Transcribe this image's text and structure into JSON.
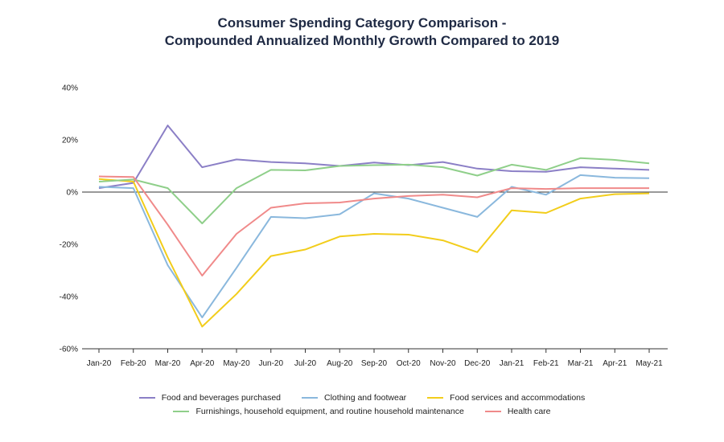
{
  "title_line1": "Consumer Spending Category Comparison -",
  "title_line2": "Compounded Annualized Monthly Growth Compared to 2019",
  "chart_data": {
    "type": "line",
    "title": "Consumer Spending Category Comparison - Compounded Annualized Monthly Growth Compared to 2019",
    "xlabel": "",
    "ylabel": "",
    "ylim": [
      -60,
      40
    ],
    "yticks": [
      "40%",
      "20%",
      "0%",
      "-20%",
      "-40%",
      "-60%"
    ],
    "ytick_values": [
      40,
      20,
      0,
      -20,
      -40,
      -60
    ],
    "categories": [
      "Jan-20",
      "Feb-20",
      "Mar-20",
      "Apr-20",
      "May-20",
      "Jun-20",
      "Jul-20",
      "Aug-20",
      "Sep-20",
      "Oct-20",
      "Nov-20",
      "Dec-20",
      "Jan-21",
      "Feb-21",
      "Mar-21",
      "Apr-21",
      "May-21"
    ],
    "legend_position": "bottom",
    "grid": false,
    "series": [
      {
        "name": "Food and beverages purchased",
        "color": "#8b7fc6",
        "values": [
          1.5,
          3.5,
          25.5,
          9.5,
          12.5,
          11.5,
          11,
          10,
          11.3,
          10.3,
          11.5,
          9,
          8,
          7.8,
          9.5,
          9,
          8.5
        ]
      },
      {
        "name": "Clothing and footwear",
        "color": "#8ab8dd",
        "values": [
          2,
          1.5,
          -28,
          -48,
          -29,
          -9.5,
          -10,
          -8.5,
          -0.5,
          -2.5,
          -6,
          -9.5,
          2,
          -1,
          6.5,
          5.5,
          5.3
        ]
      },
      {
        "name": "Food services and accommodations",
        "color": "#f2cd1b",
        "values": [
          5,
          4,
          -25,
          -51.5,
          -39,
          -24.5,
          -22,
          -17,
          -16,
          -16.3,
          -18.5,
          -23,
          -7,
          -8,
          -2.5,
          -0.8,
          -0.5
        ]
      },
      {
        "name": "Furnishings, household equipment, and routine household maintenance",
        "color": "#8fcf8a",
        "values": [
          4,
          4.8,
          1.5,
          -12,
          1.5,
          8.5,
          8.3,
          10,
          10.3,
          10.5,
          9.5,
          6.3,
          10.5,
          8.5,
          13,
          12.3,
          11
        ]
      },
      {
        "name": "Health care",
        "color": "#f08a8a",
        "values": [
          6,
          5.8,
          -12.5,
          -32,
          -16,
          -6,
          -4.3,
          -4,
          -2.5,
          -1.5,
          -1,
          -2,
          1.5,
          1.2,
          1.5,
          1.5,
          1.5
        ]
      }
    ]
  },
  "legend": {
    "row1": [
      "Food and beverages purchased",
      "Clothing and footwear",
      "Food services and accommodations"
    ],
    "row2": [
      "Furnishings, household equipment, and routine household maintenance",
      "Health care"
    ]
  }
}
